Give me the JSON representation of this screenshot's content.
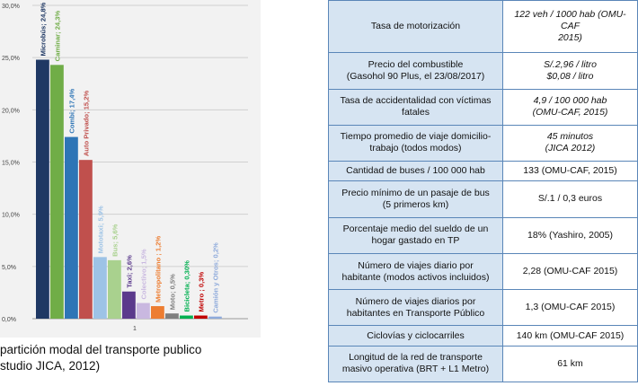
{
  "chart_data": {
    "type": "bar",
    "categories": [
      "1"
    ],
    "ylim": [
      0,
      30
    ],
    "y_ticks": [
      "0,0%",
      "5,0%",
      "10,0%",
      "15,0%",
      "20,0%",
      "25,0%",
      "30,0%"
    ],
    "grid": true,
    "series": [
      {
        "name": "Microbús",
        "value": 24.8,
        "label": "Microbús; 24,8%",
        "color": "#1f3864"
      },
      {
        "name": "Caminar",
        "value": 24.3,
        "label": "Caminar; 24,3%",
        "color": "#70ad47"
      },
      {
        "name": "Combi",
        "value": 17.4,
        "label": "Combi; 17,4%",
        "color": "#2e75b6"
      },
      {
        "name": "Auto Privado",
        "value": 15.2,
        "label": "Auto Privado; 15,2%",
        "color": "#c0504d"
      },
      {
        "name": "Mototaxi",
        "value": 5.9,
        "label": "Mototaxi; 5,9%",
        "color": "#9dc3e6"
      },
      {
        "name": "Bus",
        "value": 5.6,
        "label": "Bus; 5,6%",
        "color": "#a9d18e"
      },
      {
        "name": "Taxi",
        "value": 2.6,
        "label": "Taxi; 2,6%",
        "color": "#5b3a8c"
      },
      {
        "name": "Colectivo",
        "value": 1.5,
        "label": "Colectivo; 1,5%",
        "color": "#c9b8e0"
      },
      {
        "name": "Metropolitano",
        "value": 1.2,
        "label": "Metropolitano ; 1,2%",
        "color": "#ed7d31"
      },
      {
        "name": "Moto",
        "value": 0.5,
        "label": "Moto; 0,5%",
        "color": "#7f7f7f"
      },
      {
        "name": "Bicicleta",
        "value": 0.3,
        "label": "Bicicleta; 0,30%",
        "color": "#00b050"
      },
      {
        "name": "Metro",
        "value": 0.3,
        "label": "Metro ; 0,3%",
        "color": "#c00000"
      },
      {
        "name": "Camión y Otros",
        "value": 0.2,
        "label": "Camión y Otros; 0,2%",
        "color": "#8eaadb"
      }
    ]
  },
  "caption": {
    "line1": "partición modal del transporte publico",
    "line2": "studio JICA, 2012)"
  },
  "table": {
    "rows": [
      {
        "label": [
          "Tasa de motorización"
        ],
        "value": [
          "122 veh / 1000 hab (OMU-CAF",
          "2015)"
        ],
        "italic": true
      },
      {
        "label": [
          "Precio del combustible",
          "(Gasohol 90 Plus, el 23/08/2017)"
        ],
        "value": [
          "S/.2,96 / litro",
          "$0,08 / litro"
        ],
        "italic": true
      },
      {
        "label": [
          "Tasa de accidentalidad con víctimas",
          "fatales"
        ],
        "value": [
          "4,9 / 100 000 hab",
          "(OMU-CAF, 2015)"
        ],
        "italic": true
      },
      {
        "label": [
          "Tiempo promedio de viaje domicilio-",
          "trabajo (todos modos)"
        ],
        "value": [
          "45 minutos",
          "(JICA 2012)"
        ],
        "italic": true
      },
      {
        "label": [
          "Cantidad de buses / 100 000 hab"
        ],
        "value": [
          "133 (OMU-CAF, 2015)"
        ],
        "italic": false
      },
      {
        "label": [
          "Precio mínimo de un pasaje de bus",
          "(5 primeros km)"
        ],
        "value": [
          "S/.1 / 0,3 euros"
        ],
        "italic": false
      },
      {
        "label": [
          "Porcentaje medio del sueldo de un",
          "hogar gastado en TP"
        ],
        "value": [
          "18% (Yashiro, 2005)"
        ],
        "italic": false
      },
      {
        "label": [
          "Número de viajes diario por",
          "habitante (modos activos incluidos)"
        ],
        "value": [
          "2,28 (OMU-CAF 2015)"
        ],
        "italic": false
      },
      {
        "label": [
          "Número de viajes diarios por",
          "habitantes en Transporte Público"
        ],
        "value": [
          "1,3 (OMU-CAF 2015)"
        ],
        "italic": false
      },
      {
        "label": [
          "Ciclovías y ciclocarriles"
        ],
        "value": [
          "140 km (OMU-CAF 2015)"
        ],
        "italic": false
      },
      {
        "label": [
          "Longitud de la red de transporte",
          "masivo operativa (BRT + L1 Metro)"
        ],
        "value": [
          "61 km"
        ],
        "italic": false
      }
    ]
  }
}
